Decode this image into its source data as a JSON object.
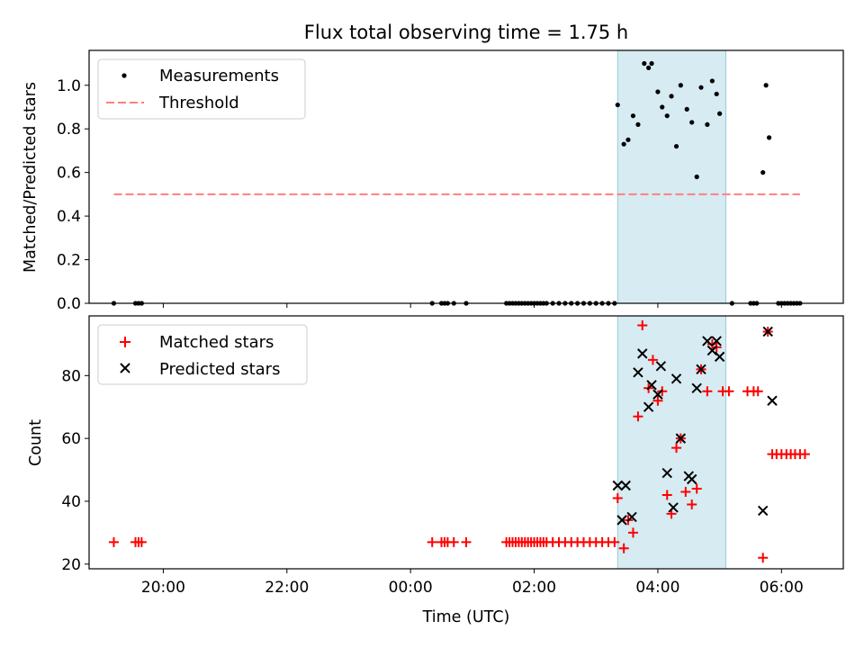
{
  "figure": {
    "title": "Flux total observing time = 1.75 h",
    "xlabel": "Time (UTC)",
    "xtick_labels": [
      "20:00",
      "22:00",
      "00:00",
      "02:00",
      "04:00",
      "06:00"
    ],
    "colors": {
      "measurement": "#000000",
      "threshold": "#ff7f7f",
      "matched": "#ff0000",
      "predicted": "#000000",
      "span_fill": "#add8e6"
    }
  },
  "chart_data": [
    {
      "type": "scatter",
      "ylabel": "Matched/Predicted stars",
      "ytick_labels": [
        "0.0",
        "0.2",
        "0.4",
        "0.6",
        "0.8",
        "1.0"
      ],
      "yticks": [
        0,
        0.2,
        0.4,
        0.6,
        0.8,
        1.0
      ],
      "xlim": [
        -5.2,
        7.0
      ],
      "ylim": [
        0,
        1.16
      ],
      "legend_location": "upper-left",
      "shaded_span_hours": [
        3.35,
        5.1
      ],
      "threshold": {
        "name": "Threshold",
        "value": 0.5,
        "x_range": [
          -4.8,
          6.3
        ],
        "style": "dashed"
      },
      "series": [
        {
          "name": "Measurements",
          "marker": "dot",
          "points": [
            [
              -4.8,
              0
            ],
            [
              -4.45,
              0
            ],
            [
              -4.4,
              0
            ],
            [
              -4.35,
              0
            ],
            [
              0.35,
              0
            ],
            [
              0.5,
              0
            ],
            [
              0.55,
              0
            ],
            [
              0.6,
              0
            ],
            [
              0.7,
              0
            ],
            [
              0.9,
              0
            ],
            [
              1.55,
              0
            ],
            [
              1.6,
              0
            ],
            [
              1.65,
              0
            ],
            [
              1.7,
              0
            ],
            [
              1.75,
              0
            ],
            [
              1.8,
              0
            ],
            [
              1.85,
              0
            ],
            [
              1.9,
              0
            ],
            [
              1.95,
              0
            ],
            [
              2.0,
              0
            ],
            [
              2.05,
              0
            ],
            [
              2.1,
              0
            ],
            [
              2.15,
              0
            ],
            [
              2.2,
              0
            ],
            [
              2.3,
              0
            ],
            [
              2.4,
              0
            ],
            [
              2.5,
              0
            ],
            [
              2.6,
              0
            ],
            [
              2.7,
              0
            ],
            [
              2.8,
              0
            ],
            [
              2.9,
              0
            ],
            [
              3.0,
              0
            ],
            [
              3.1,
              0
            ],
            [
              3.2,
              0
            ],
            [
              3.3,
              0
            ],
            [
              3.35,
              0.91
            ],
            [
              3.45,
              0.73
            ],
            [
              3.52,
              0.75
            ],
            [
              3.6,
              0.86
            ],
            [
              3.68,
              0.82
            ],
            [
              3.78,
              1.1
            ],
            [
              3.85,
              1.08
            ],
            [
              3.9,
              1.1
            ],
            [
              4.0,
              0.97
            ],
            [
              4.07,
              0.9
            ],
            [
              4.15,
              0.86
            ],
            [
              4.22,
              0.95
            ],
            [
              4.3,
              0.72
            ],
            [
              4.37,
              1.0
            ],
            [
              4.47,
              0.89
            ],
            [
              4.55,
              0.83
            ],
            [
              4.63,
              0.58
            ],
            [
              4.7,
              0.99
            ],
            [
              4.8,
              0.82
            ],
            [
              4.88,
              1.02
            ],
            [
              4.95,
              0.96
            ],
            [
              5.0,
              0.87
            ],
            [
              5.2,
              0
            ],
            [
              5.5,
              0
            ],
            [
              5.55,
              0
            ],
            [
              5.6,
              0
            ],
            [
              5.7,
              0.6
            ],
            [
              5.75,
              1.0
            ],
            [
              5.8,
              0.76
            ],
            [
              5.95,
              0
            ],
            [
              6.0,
              0
            ],
            [
              6.05,
              0
            ],
            [
              6.1,
              0
            ],
            [
              6.15,
              0
            ],
            [
              6.2,
              0
            ],
            [
              6.25,
              0
            ],
            [
              6.3,
              0
            ]
          ]
        }
      ]
    },
    {
      "type": "scatter",
      "ylabel": "Count",
      "ytick_labels": [
        "20",
        "40",
        "60",
        "80"
      ],
      "yticks": [
        20,
        40,
        60,
        80
      ],
      "xlim": [
        -5.2,
        7.0
      ],
      "ylim": [
        18.5,
        99
      ],
      "legend_location": "upper-left",
      "shaded_span_hours": [
        3.35,
        5.1
      ],
      "series": [
        {
          "name": "Matched stars",
          "marker": "plus",
          "points": [
            [
              -4.8,
              27
            ],
            [
              -4.45,
              27
            ],
            [
              -4.4,
              27
            ],
            [
              -4.35,
              27
            ],
            [
              0.35,
              27
            ],
            [
              0.5,
              27
            ],
            [
              0.55,
              27
            ],
            [
              0.6,
              27
            ],
            [
              0.7,
              27
            ],
            [
              0.9,
              27
            ],
            [
              1.55,
              27
            ],
            [
              1.6,
              27
            ],
            [
              1.65,
              27
            ],
            [
              1.7,
              27
            ],
            [
              1.75,
              27
            ],
            [
              1.8,
              27
            ],
            [
              1.85,
              27
            ],
            [
              1.9,
              27
            ],
            [
              1.95,
              27
            ],
            [
              2.0,
              27
            ],
            [
              2.05,
              27
            ],
            [
              2.1,
              27
            ],
            [
              2.15,
              27
            ],
            [
              2.2,
              27
            ],
            [
              2.3,
              27
            ],
            [
              2.4,
              27
            ],
            [
              2.5,
              27
            ],
            [
              2.6,
              27
            ],
            [
              2.7,
              27
            ],
            [
              2.8,
              27
            ],
            [
              2.9,
              27
            ],
            [
              3.0,
              27
            ],
            [
              3.1,
              27
            ],
            [
              3.2,
              27
            ],
            [
              3.3,
              27
            ],
            [
              3.35,
              41
            ],
            [
              3.45,
              25
            ],
            [
              3.52,
              34
            ],
            [
              3.6,
              30
            ],
            [
              3.68,
              67
            ],
            [
              3.75,
              96
            ],
            [
              3.85,
              76
            ],
            [
              3.92,
              85
            ],
            [
              4.0,
              72
            ],
            [
              4.07,
              75
            ],
            [
              4.15,
              42
            ],
            [
              4.22,
              36
            ],
            [
              4.3,
              57
            ],
            [
              4.37,
              60
            ],
            [
              4.45,
              43
            ],
            [
              4.55,
              39
            ],
            [
              4.63,
              44
            ],
            [
              4.7,
              82
            ],
            [
              4.8,
              75
            ],
            [
              4.88,
              90
            ],
            [
              4.95,
              89
            ],
            [
              5.05,
              75
            ],
            [
              5.15,
              75
            ],
            [
              5.45,
              75
            ],
            [
              5.55,
              75
            ],
            [
              5.62,
              75
            ],
            [
              5.7,
              22
            ],
            [
              5.78,
              94
            ],
            [
              5.85,
              55
            ],
            [
              5.92,
              55
            ],
            [
              6.0,
              55
            ],
            [
              6.08,
              55
            ],
            [
              6.15,
              55
            ],
            [
              6.22,
              55
            ],
            [
              6.3,
              55
            ],
            [
              6.38,
              55
            ]
          ]
        },
        {
          "name": "Predicted stars",
          "marker": "x",
          "points": [
            [
              3.35,
              45
            ],
            [
              3.42,
              34
            ],
            [
              3.48,
              45
            ],
            [
              3.58,
              35
            ],
            [
              3.68,
              81
            ],
            [
              3.75,
              87
            ],
            [
              3.85,
              70
            ],
            [
              3.9,
              77
            ],
            [
              4.0,
              74
            ],
            [
              4.05,
              83
            ],
            [
              4.15,
              49
            ],
            [
              4.25,
              38
            ],
            [
              4.3,
              79
            ],
            [
              4.37,
              60
            ],
            [
              4.5,
              48
            ],
            [
              4.55,
              47
            ],
            [
              4.63,
              76
            ],
            [
              4.7,
              82
            ],
            [
              4.8,
              91
            ],
            [
              4.88,
              88
            ],
            [
              4.95,
              91
            ],
            [
              5.0,
              86
            ],
            [
              5.7,
              37
            ],
            [
              5.78,
              94
            ],
            [
              5.85,
              72
            ]
          ]
        }
      ]
    }
  ]
}
